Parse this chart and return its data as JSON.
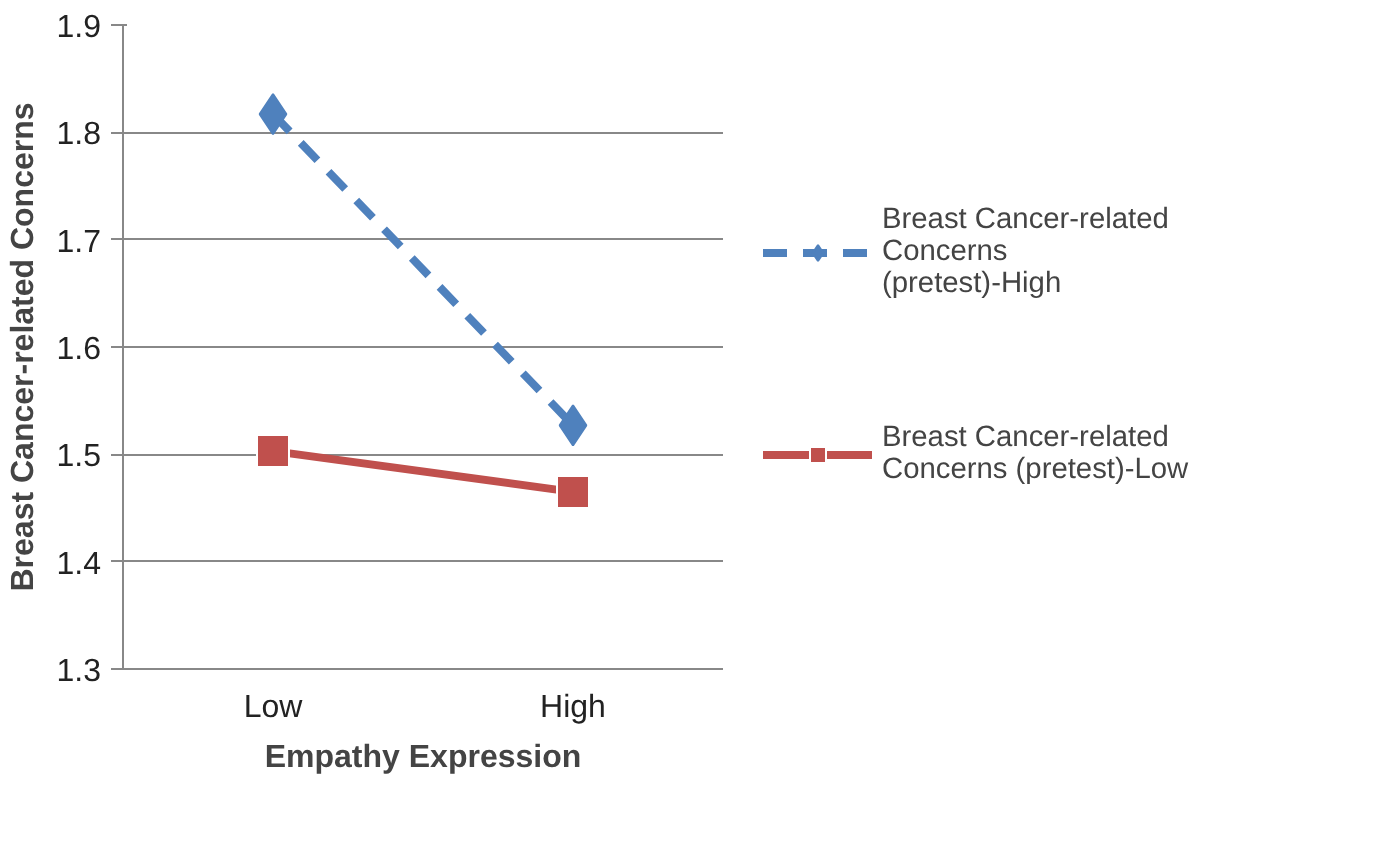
{
  "chart_data": {
    "type": "line",
    "xlabel": "Empathy Expression",
    "ylabel": "Breast Cancer-related Concerns",
    "categories": [
      "Low",
      "High"
    ],
    "series": [
      {
        "name": "Breast Cancer-related Concerns (pretest)-High",
        "color": "#4f81bd",
        "values": [
          1.817,
          1.527
        ],
        "marker": "diamond",
        "line_style": "dashed"
      },
      {
        "name": "Breast Cancer-related Concerns (pretest)-Low",
        "color": "#c0504d",
        "values": [
          1.503,
          1.465
        ],
        "marker": "square",
        "line_style": "solid"
      }
    ],
    "ylim": [
      1.3,
      1.9
    ],
    "yticks": [
      1.3,
      1.4,
      1.5,
      1.6,
      1.7,
      1.8,
      1.9
    ],
    "grid": "y",
    "legend": "right"
  }
}
